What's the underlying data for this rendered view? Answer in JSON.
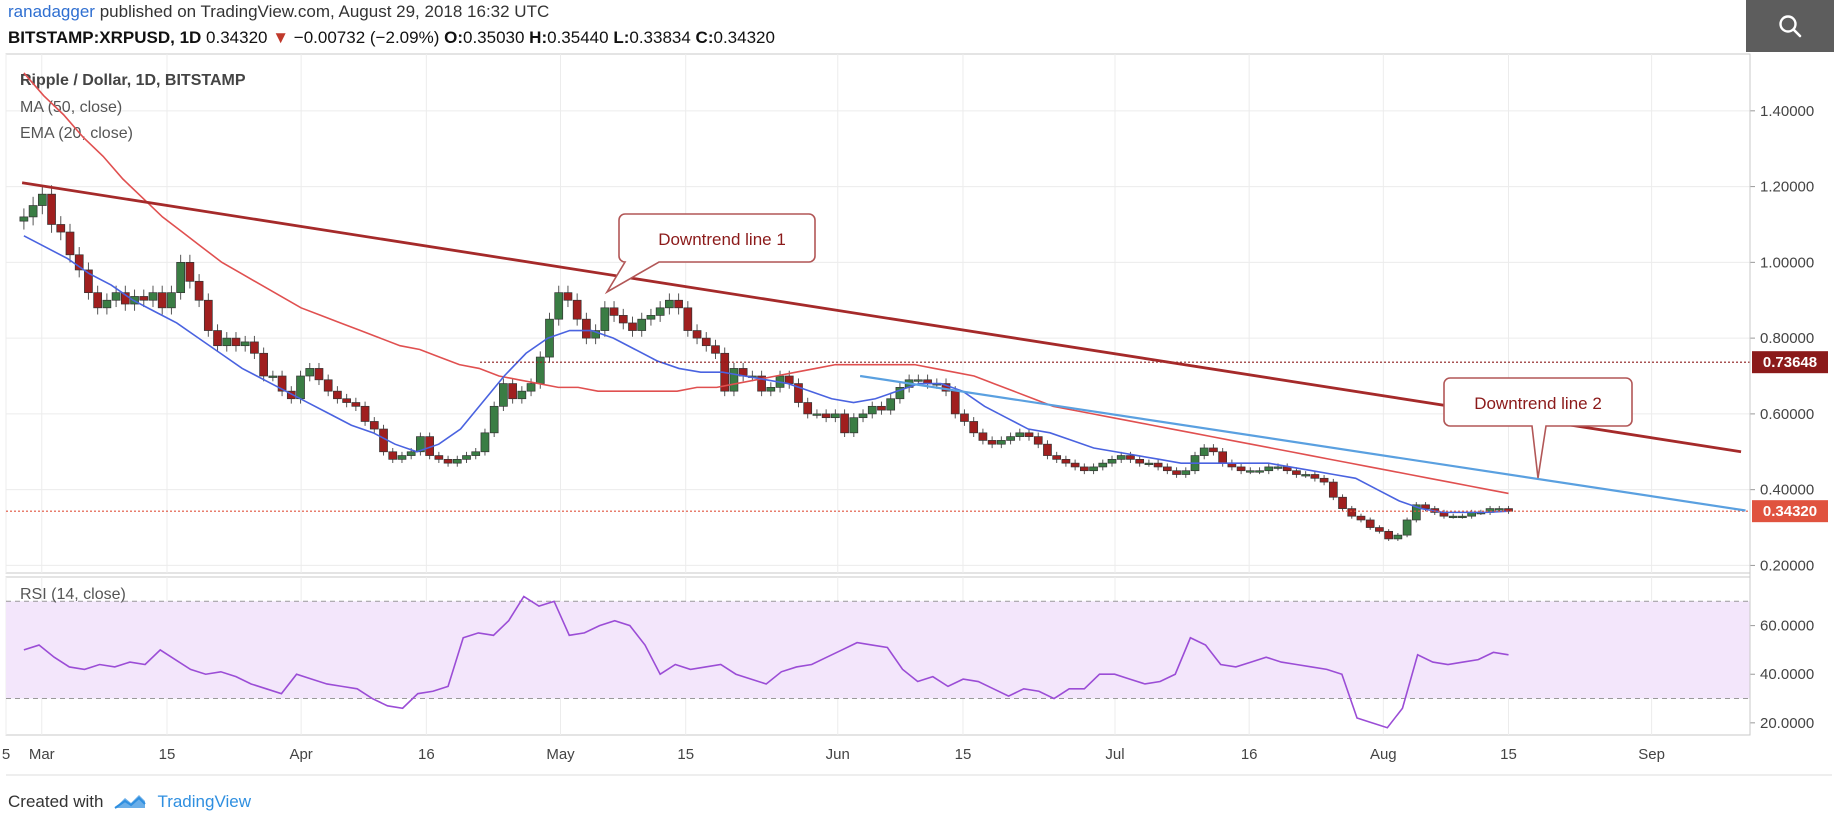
{
  "header": {
    "author": "ranadagger",
    "published": "published on TradingView.com, August 29, 2018 16:32 UTC",
    "symbol": "BITSTAMP:XRPUSD, 1D",
    "last": "0.34320",
    "change_arrow": "▼",
    "change": "−0.00732 (−2.09%)",
    "o_label": "O:",
    "o": "0.35030",
    "h_label": "H:",
    "h": "0.35440",
    "l_label": "L:",
    "l": "0.33834",
    "c_label": "C:",
    "c": "0.34320"
  },
  "search": {
    "icon": "search-icon"
  },
  "footer": {
    "created": "Created with",
    "brand": "TradingView",
    "icon": "tradingview-logo-icon"
  },
  "chart_data": {
    "type": "line",
    "title": "Ripple / Dollar, 1D, BITSTAMP",
    "legend": [
      "MA (50, close)",
      "EMA (20, close)"
    ],
    "ylim": [
      0.18,
      1.55
    ],
    "y_ticks": [
      "1.40000",
      "1.20000",
      "1.00000",
      "0.80000",
      "0.60000",
      "0.40000",
      "0.20000"
    ],
    "y_tick_values": [
      1.4,
      1.2,
      1.0,
      0.8,
      0.6,
      0.4,
      0.2
    ],
    "x_ticks": [
      "5",
      "Mar",
      "15",
      "Apr",
      "16",
      "May",
      "15",
      "Jun",
      "15",
      "Jul",
      "16",
      "Aug",
      "15",
      "Sep"
    ],
    "x_tick_days": [
      0,
      4,
      18,
      33,
      47,
      62,
      76,
      93,
      107,
      124,
      139,
      154,
      168,
      184
    ],
    "price_markers": [
      {
        "label": "0.73648",
        "value": 0.73648,
        "color": "#8b1a1a"
      },
      {
        "label": "0.34320",
        "value": 0.3432,
        "color": "#e0533f"
      }
    ],
    "series": [
      {
        "name": "Close",
        "color": "#3a7d44",
        "values": [
          1.12,
          1.15,
          1.18,
          1.1,
          1.08,
          1.02,
          0.98,
          0.92,
          0.88,
          0.9,
          0.92,
          0.89,
          0.91,
          0.9,
          0.92,
          0.88,
          0.92,
          1.0,
          0.95,
          0.9,
          0.82,
          0.78,
          0.8,
          0.78,
          0.79,
          0.76,
          0.7,
          0.7,
          0.66,
          0.64,
          0.7,
          0.72,
          0.69,
          0.66,
          0.64,
          0.63,
          0.62,
          0.58,
          0.56,
          0.5,
          0.48,
          0.49,
          0.5,
          0.54,
          0.49,
          0.48,
          0.47,
          0.48,
          0.49,
          0.5,
          0.55,
          0.62,
          0.68,
          0.64,
          0.66,
          0.68,
          0.75,
          0.85,
          0.92,
          0.9,
          0.85,
          0.8,
          0.82,
          0.88,
          0.86,
          0.84,
          0.82,
          0.85,
          0.86,
          0.88,
          0.9,
          0.88,
          0.82,
          0.8,
          0.78,
          0.76,
          0.66,
          0.72,
          0.7,
          0.7,
          0.66,
          0.67,
          0.7,
          0.68,
          0.63,
          0.6,
          0.6,
          0.59,
          0.6,
          0.55,
          0.59,
          0.6,
          0.62,
          0.61,
          0.64,
          0.67,
          0.69,
          0.69,
          0.68,
          0.68,
          0.66,
          0.6,
          0.58,
          0.55,
          0.53,
          0.52,
          0.53,
          0.54,
          0.55,
          0.54,
          0.52,
          0.49,
          0.48,
          0.47,
          0.46,
          0.45,
          0.46,
          0.47,
          0.48,
          0.49,
          0.48,
          0.47,
          0.47,
          0.46,
          0.45,
          0.44,
          0.45,
          0.49,
          0.51,
          0.5,
          0.47,
          0.46,
          0.45,
          0.45,
          0.45,
          0.46,
          0.46,
          0.45,
          0.44,
          0.44,
          0.43,
          0.42,
          0.38,
          0.35,
          0.33,
          0.32,
          0.3,
          0.29,
          0.27,
          0.28,
          0.32,
          0.36,
          0.35,
          0.34,
          0.33,
          0.33,
          0.33,
          0.34,
          0.34,
          0.35,
          0.35,
          0.343
        ]
      },
      {
        "name": "MA (50, close)",
        "color": "#e05050",
        "values": [
          1.5,
          1.44,
          1.39,
          1.33,
          1.28,
          1.22,
          1.17,
          1.12,
          1.08,
          1.04,
          1.0,
          0.97,
          0.94,
          0.91,
          0.88,
          0.86,
          0.84,
          0.82,
          0.8,
          0.78,
          0.77,
          0.75,
          0.73,
          0.72,
          0.7,
          0.69,
          0.68,
          0.67,
          0.67,
          0.66,
          0.66,
          0.66,
          0.66,
          0.66,
          0.67,
          0.67,
          0.68,
          0.69,
          0.7,
          0.71,
          0.72,
          0.73,
          0.73,
          0.73,
          0.73,
          0.73,
          0.72,
          0.71,
          0.7,
          0.68,
          0.66,
          0.64,
          0.62,
          0.61,
          0.6,
          0.59,
          0.58,
          0.57,
          0.56,
          0.55,
          0.54,
          0.53,
          0.52,
          0.51,
          0.5,
          0.49,
          0.48,
          0.47,
          0.46,
          0.45,
          0.44,
          0.43,
          0.42,
          0.41,
          0.4,
          0.39
        ]
      },
      {
        "name": "EMA (20, close)",
        "color": "#4a63e0",
        "values": [
          1.07,
          1.04,
          1.01,
          0.97,
          0.94,
          0.9,
          0.87,
          0.84,
          0.8,
          0.76,
          0.72,
          0.69,
          0.66,
          0.63,
          0.6,
          0.57,
          0.55,
          0.52,
          0.5,
          0.52,
          0.56,
          0.63,
          0.7,
          0.76,
          0.8,
          0.82,
          0.82,
          0.8,
          0.77,
          0.74,
          0.72,
          0.71,
          0.71,
          0.7,
          0.69,
          0.68,
          0.66,
          0.64,
          0.63,
          0.64,
          0.66,
          0.68,
          0.68,
          0.66,
          0.62,
          0.59,
          0.56,
          0.55,
          0.53,
          0.51,
          0.5,
          0.49,
          0.48,
          0.47,
          0.47,
          0.47,
          0.47,
          0.47,
          0.46,
          0.45,
          0.44,
          0.43,
          0.4,
          0.37,
          0.35,
          0.34,
          0.34,
          0.34,
          0.343
        ]
      }
    ],
    "trendlines": [
      {
        "label": "Downtrend line 1",
        "color": "#a52a2a"
      },
      {
        "label": "Downtrend line 2",
        "color": "#5aa0e0"
      }
    ],
    "rsi": {
      "label": "RSI (14, close)",
      "ylim": [
        15,
        80
      ],
      "y_ticks": [
        "60.0000",
        "40.0000",
        "20.0000"
      ],
      "y_tick_values": [
        60,
        40,
        20
      ],
      "band": [
        30,
        70
      ],
      "values": [
        50,
        52,
        47,
        43,
        42,
        44,
        43,
        45,
        44,
        50,
        46,
        42,
        40,
        41,
        39,
        36,
        34,
        32,
        40,
        38,
        36,
        35,
        34,
        30,
        27,
        26,
        32,
        33,
        35,
        55,
        57,
        56,
        62,
        72,
        68,
        70,
        56,
        57,
        60,
        62,
        60,
        52,
        40,
        44,
        42,
        43,
        44,
        40,
        38,
        36,
        41,
        43,
        44,
        47,
        50,
        53,
        52,
        51,
        42,
        37,
        39,
        35,
        38,
        37,
        34,
        31,
        34,
        33,
        30,
        34,
        34,
        40,
        40,
        38,
        36,
        37,
        40,
        55,
        52,
        44,
        43,
        45,
        47,
        45,
        44,
        43,
        42,
        40,
        22,
        20,
        18,
        26,
        48,
        45,
        44,
        45,
        46,
        49,
        48
      ]
    }
  }
}
